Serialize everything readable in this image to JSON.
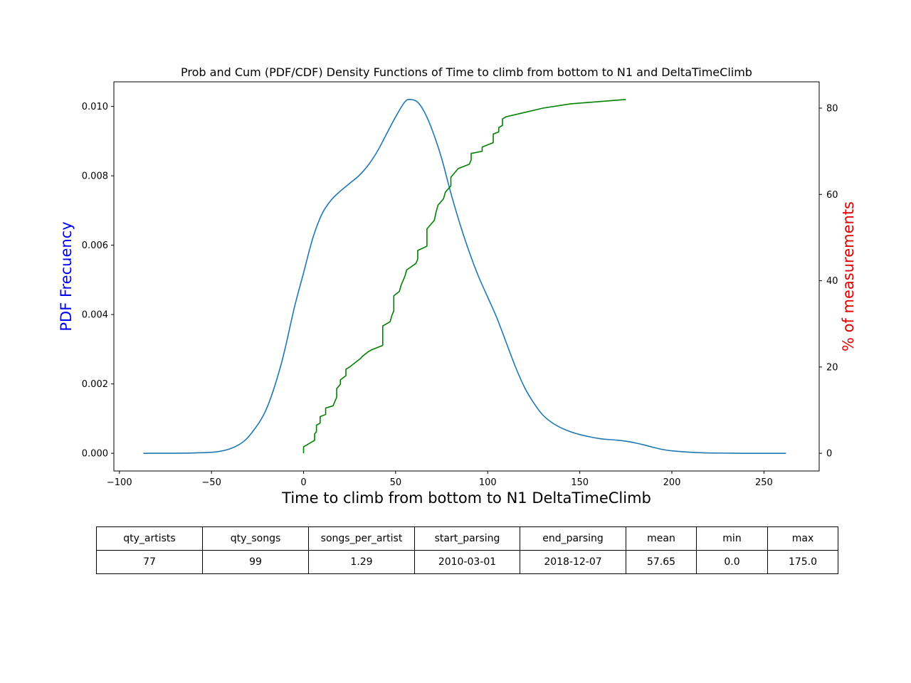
{
  "chart_data": {
    "type": "line",
    "title": "Prob and Cum (PDF/CDF) Density Functions of Time to climb from bottom to N1 and DeltaTimeClimb",
    "xlabel": "Time to climb from bottom to N1 DeltaTimeClimb",
    "ylabel_left": "PDF Frecuency",
    "ylabel_right": "% of measurements",
    "xlim": [
      -103,
      280
    ],
    "ylim_left": [
      -0.00051,
      0.01071
    ],
    "ylim_right": [
      -4.1,
      86.1
    ],
    "x_ticks": [
      -100,
      -50,
      0,
      50,
      100,
      150,
      200,
      250
    ],
    "y_ticks_left": [
      0.0,
      0.002,
      0.004,
      0.006,
      0.008,
      0.01
    ],
    "y_ticks_left_labels": [
      "0.000",
      "0.002",
      "0.004",
      "0.006",
      "0.008",
      "0.010"
    ],
    "y_ticks_right": [
      0,
      20,
      40,
      60,
      80
    ],
    "grid": false,
    "colors": {
      "pdf": "#1f77b4",
      "cdf": "#008000",
      "ylabel_left": "#0000ff",
      "ylabel_right": "#e00000"
    },
    "series": [
      {
        "axis": "left",
        "style": "smooth",
        "x": [
          -87,
          -60,
          -45,
          -35,
          -28,
          -20,
          -12,
          -5,
          0,
          5,
          10,
          15,
          20,
          25,
          30,
          35,
          40,
          45,
          50,
          55,
          58,
          62,
          66,
          70,
          75,
          80,
          85,
          90,
          95,
          100,
          105,
          110,
          115,
          120,
          125,
          130,
          135,
          140,
          145,
          150,
          155,
          160,
          165,
          170,
          175,
          180,
          185,
          190,
          195,
          200,
          210,
          220,
          240,
          262
        ],
        "y": [
          0.0,
          1e-05,
          6e-05,
          0.00025,
          0.0006,
          0.0013,
          0.0026,
          0.0042,
          0.0052,
          0.0062,
          0.0069,
          0.0073,
          0.00756,
          0.00778,
          0.008,
          0.0083,
          0.0087,
          0.0092,
          0.0097,
          0.01013,
          0.0102,
          0.01012,
          0.0098,
          0.0093,
          0.0085,
          0.0075,
          0.0066,
          0.0058,
          0.0051,
          0.0045,
          0.0039,
          0.0032,
          0.0025,
          0.0019,
          0.00145,
          0.0011,
          0.00088,
          0.00073,
          0.00062,
          0.00054,
          0.00048,
          0.00043,
          0.0004,
          0.00038,
          0.00035,
          0.0003,
          0.00024,
          0.00017,
          0.00011,
          7e-05,
          3e-05,
          1e-05,
          0.0,
          0.0
        ]
      },
      {
        "axis": "right",
        "style": "linear",
        "x": [
          0,
          0,
          6,
          6,
          7,
          7,
          9,
          9,
          12,
          12,
          16,
          17,
          18,
          18,
          20,
          20,
          23,
          23,
          25,
          28,
          31,
          32,
          35,
          37,
          43,
          43,
          47,
          48,
          49,
          49,
          52,
          53,
          55,
          56,
          61,
          62,
          62,
          67,
          67,
          69,
          71,
          72,
          73,
          75,
          76,
          77,
          79,
          80,
          80,
          82,
          84,
          90,
          91,
          91,
          97,
          97,
          103,
          103,
          106,
          106,
          108,
          108,
          110,
          110,
          120,
          130,
          145,
          160,
          175
        ],
        "y": [
          0,
          1.5,
          3,
          4.5,
          5,
          6.5,
          7,
          8.5,
          9,
          10.5,
          11,
          12,
          13,
          15,
          16,
          17,
          18,
          19.5,
          20,
          21,
          22,
          22.5,
          23.5,
          24,
          25,
          29.5,
          30.5,
          32,
          33,
          36.5,
          37.5,
          39,
          41,
          42.5,
          44,
          45,
          47,
          48,
          52,
          53,
          54,
          56,
          57.5,
          58.5,
          59,
          60.5,
          61.5,
          62,
          64,
          65,
          66,
          67,
          68,
          69.5,
          70,
          71,
          72,
          74,
          74.5,
          75.5,
          76,
          77.5,
          78,
          78,
          79,
          80,
          81,
          81.5,
          82
        ]
      }
    ]
  },
  "stats_table": {
    "headers": [
      "qty_artists",
      "qty_songs",
      "songs_per_artist",
      "start_parsing",
      "end_parsing",
      "mean",
      "min",
      "max"
    ],
    "values": [
      "77",
      "99",
      "1.29",
      "2010-03-01",
      "2018-12-07",
      "57.65",
      "0.0",
      "175.0"
    ]
  }
}
